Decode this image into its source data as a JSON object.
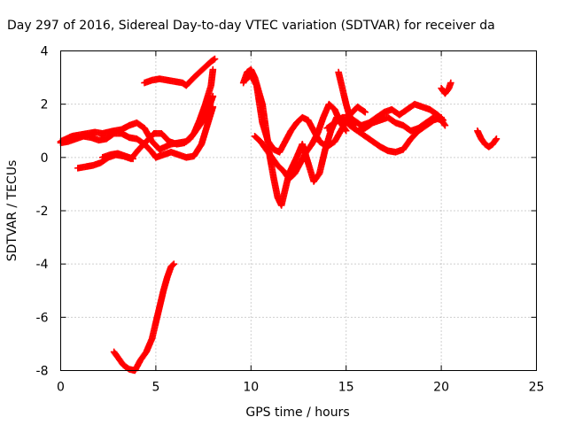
{
  "chart_data": {
    "type": "scatter",
    "title": "Day 297 of 2016, Sidereal Day-to-day VTEC variation (SDTVAR) for receiver da",
    "xlabel": "GPS time / hours",
    "ylabel": "SDTVAR / TECUs",
    "xlim": [
      0,
      25
    ],
    "ylim": [
      -8,
      4
    ],
    "xticks": [
      "0",
      "5",
      "10",
      "15",
      "20",
      "25"
    ],
    "yticks": [
      "-8",
      "-6",
      "-4",
      "-2",
      "0",
      "2",
      "4"
    ],
    "grid": true,
    "marker": "plus",
    "color": "#ff0000",
    "series": [
      {
        "x": [
          0.0,
          0.3,
          0.6,
          1.0,
          1.4,
          1.8,
          2.2,
          2.5,
          2.8,
          3.2,
          3.6,
          4.0,
          4.4,
          4.8,
          5.2,
          5.5,
          5.8,
          6.2,
          6.6,
          7.0,
          7.3,
          7.6,
          7.9,
          8.0
        ],
        "y": [
          0.6,
          0.7,
          0.8,
          0.85,
          0.9,
          0.95,
          0.9,
          0.95,
          1.0,
          1.05,
          1.2,
          1.3,
          1.1,
          0.6,
          0.3,
          0.4,
          0.5,
          0.55,
          0.6,
          0.9,
          1.4,
          2.0,
          2.7,
          3.3
        ]
      },
      {
        "x": [
          0.0,
          0.4,
          0.8,
          1.2,
          1.6,
          2.0,
          2.4,
          2.8,
          3.2,
          3.6,
          4.0,
          4.4,
          4.8,
          5.0,
          5.4,
          5.8,
          6.2,
          6.6,
          7.0,
          7.4,
          7.7,
          8.0
        ],
        "y": [
          0.55,
          0.6,
          0.7,
          0.8,
          0.75,
          0.65,
          0.7,
          0.9,
          0.9,
          0.75,
          0.7,
          0.5,
          0.2,
          0.0,
          0.1,
          0.2,
          0.1,
          0.0,
          0.05,
          0.5,
          1.2,
          1.9
        ]
      },
      {
        "x": [
          0.9,
          1.3,
          1.7,
          2.1,
          2.5,
          2.9,
          3.3,
          3.7,
          4.1,
          4.5,
          4.9,
          5.3,
          5.7,
          6.1,
          6.5,
          6.8,
          7.1,
          7.4,
          7.7,
          8.0
        ],
        "y": [
          -0.4,
          -0.35,
          -0.3,
          -0.2,
          0.0,
          0.1,
          0.05,
          -0.05,
          0.3,
          0.6,
          0.9,
          0.9,
          0.6,
          0.5,
          0.55,
          0.7,
          1.0,
          1.3,
          1.7,
          2.3
        ]
      },
      {
        "x": [
          2.2,
          2.6,
          3.0,
          3.4,
          3.8
        ],
        "y": [
          0.0,
          0.1,
          0.15,
          0.05,
          -0.05
        ]
      },
      {
        "x": [
          4.4,
          4.8,
          5.2,
          5.6,
          6.0,
          6.4,
          6.6,
          7.0,
          7.3,
          7.6,
          7.9,
          8.1
        ],
        "y": [
          2.8,
          2.9,
          2.95,
          2.9,
          2.85,
          2.8,
          2.7,
          3.0,
          3.2,
          3.4,
          3.6,
          3.7
        ]
      },
      {
        "x": [
          2.8,
          3.0,
          3.3,
          3.6,
          3.9,
          4.2,
          4.5,
          4.8,
          5.0,
          5.2,
          5.4,
          5.6,
          5.8,
          5.95
        ],
        "y": [
          -7.3,
          -7.5,
          -7.8,
          -7.95,
          -8.0,
          -7.6,
          -7.3,
          -6.8,
          -6.2,
          -5.6,
          -5.0,
          -4.5,
          -4.1,
          -4.0
        ]
      },
      {
        "x": [
          9.6,
          9.8,
          10.0,
          10.2,
          10.4,
          10.6,
          10.8,
          11.0,
          11.2,
          11.4,
          11.6,
          11.8,
          12.0,
          12.2,
          12.4,
          12.7,
          13.0,
          13.3,
          13.6,
          13.9,
          14.2,
          14.5,
          14.8,
          15.0
        ],
        "y": [
          2.8,
          3.2,
          3.3,
          3.0,
          2.5,
          2.0,
          1.0,
          0.0,
          -0.8,
          -1.5,
          -1.8,
          -1.2,
          -0.6,
          -0.3,
          0.0,
          0.5,
          -0.2,
          -0.9,
          -0.6,
          0.3,
          1.0,
          1.5,
          1.2,
          1.0
        ]
      },
      {
        "x": [
          9.7,
          10.0,
          10.3,
          10.6,
          10.9,
          11.2,
          11.5,
          11.8,
          12.1,
          12.4,
          12.7,
          13.0,
          13.3,
          13.6,
          14.0,
          14.4,
          14.8,
          15.2,
          15.6,
          16.0
        ],
        "y": [
          2.9,
          3.1,
          2.7,
          1.3,
          0.6,
          0.3,
          0.2,
          0.6,
          1.0,
          1.3,
          1.5,
          1.4,
          1.0,
          0.6,
          0.4,
          0.6,
          1.1,
          1.6,
          1.9,
          1.7
        ]
      },
      {
        "x": [
          10.2,
          10.5,
          10.8,
          11.1,
          11.4,
          11.7,
          12.0,
          12.3,
          12.6,
          12.9,
          13.2,
          13.5,
          13.8,
          14.1,
          14.4,
          14.7
        ],
        "y": [
          0.8,
          0.6,
          0.3,
          0.0,
          -0.3,
          -0.5,
          -0.8,
          -0.6,
          -0.2,
          0.2,
          0.5,
          0.9,
          1.5,
          2.0,
          1.8,
          1.3
        ]
      },
      {
        "x": [
          14.0,
          14.4,
          14.8,
          15.2,
          15.6,
          16.0,
          16.4,
          16.8,
          17.2,
          17.6,
          18.0,
          18.4,
          18.8,
          19.2,
          19.6,
          20.0,
          20.2
        ],
        "y": [
          1.1,
          1.3,
          1.5,
          1.2,
          1.0,
          1.1,
          1.3,
          1.4,
          1.5,
          1.3,
          1.2,
          1.0,
          1.1,
          1.3,
          1.5,
          1.4,
          1.2
        ]
      },
      {
        "x": [
          15.0,
          15.4,
          15.8,
          16.2,
          16.6,
          17.0,
          17.4,
          17.8,
          18.2,
          18.6,
          19.0,
          19.4,
          19.8,
          20.1
        ],
        "y": [
          1.6,
          1.4,
          1.2,
          1.3,
          1.5,
          1.7,
          1.8,
          1.6,
          1.8,
          2.0,
          1.9,
          1.8,
          1.6,
          1.4
        ]
      },
      {
        "x": [
          15.6,
          16.0,
          16.4,
          16.8,
          17.2,
          17.6,
          18.0,
          18.4,
          18.8,
          19.2,
          19.6,
          20.0
        ],
        "y": [
          1.0,
          0.8,
          0.6,
          0.4,
          0.25,
          0.2,
          0.3,
          0.7,
          1.0,
          1.2,
          1.4,
          1.5
        ]
      },
      {
        "x": [
          14.6,
          14.8,
          15.0,
          15.2,
          15.4
        ],
        "y": [
          3.2,
          2.6,
          2.0,
          1.5,
          1.2
        ]
      },
      {
        "x": [
          20.0,
          20.2,
          20.4,
          20.5
        ],
        "y": [
          2.6,
          2.4,
          2.6,
          2.8
        ]
      },
      {
        "x": [
          21.9,
          22.1,
          22.3,
          22.5,
          22.7,
          22.9
        ],
        "y": [
          1.0,
          0.7,
          0.5,
          0.4,
          0.5,
          0.7
        ]
      }
    ]
  }
}
